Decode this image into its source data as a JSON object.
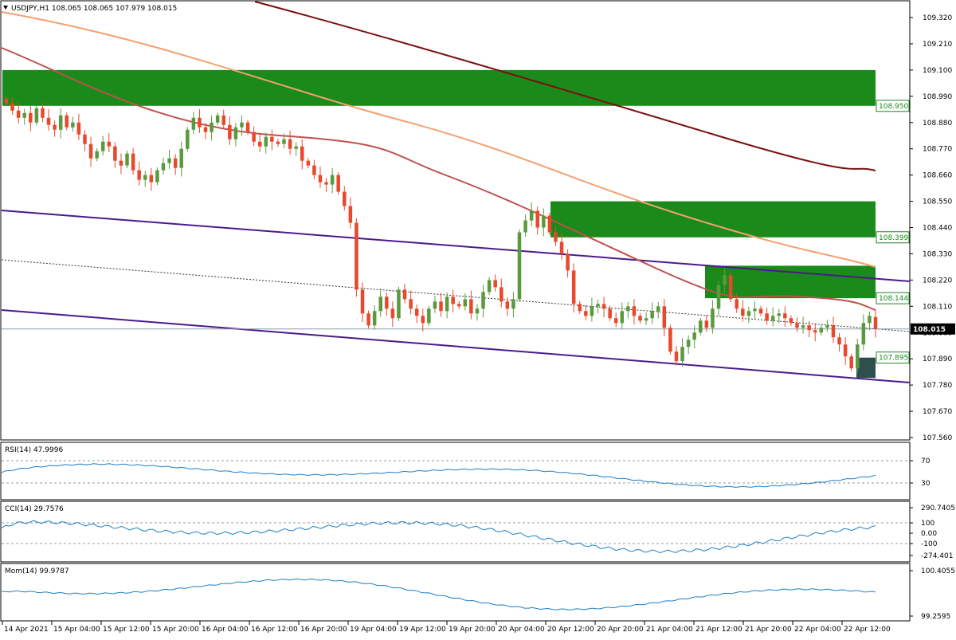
{
  "window": {
    "symbol_header": "USDJPY,H1  108.065 108.065 107.979 108.015",
    "dropdown_icon": "triangle-down-icon"
  },
  "colors": {
    "bull": "#5a9a3e",
    "bear": "#e8492d",
    "zone_green": "#1a8a1a",
    "zone_dark": "#2f4f4f",
    "ma_dark": "#7a1010",
    "ma_light": "#f5a070",
    "ma_mid": "#c0504d",
    "channel": "#4b1a8c",
    "indicator_line": "#1e7fc8",
    "grid": "#c8c8c8"
  },
  "price_axis": {
    "ticks": [
      "109.320",
      "109.210",
      "109.100",
      "108.990",
      "108.880",
      "108.770",
      "108.660",
      "108.550",
      "108.440",
      "108.330",
      "108.220",
      "108.110",
      "108.000",
      "107.890",
      "107.780",
      "107.670",
      "107.560"
    ],
    "current_price": "108.015",
    "levels": [
      {
        "label": "108.950",
        "value": 108.95
      },
      {
        "label": "108.399",
        "value": 108.399
      },
      {
        "label": "108.144",
        "value": 108.144
      },
      {
        "label": "107.895",
        "value": 107.895
      }
    ],
    "ylim": [
      107.54,
      109.41
    ]
  },
  "time_axis": {
    "labels": [
      "14 Apr 2021",
      "15 Apr 04:00",
      "15 Apr 12:00",
      "15 Apr 20:00",
      "16 Apr 04:00",
      "16 Apr 12:00",
      "16 Apr 20:00",
      "19 Apr 04:00",
      "19 Apr 12:00",
      "19 Apr 20:00",
      "20 Apr 04:00",
      "20 Apr 12:00",
      "20 Apr 20:00",
      "21 Apr 04:00",
      "21 Apr 12:00",
      "21 Apr 20:00",
      "22 Apr 04:00",
      "22 Apr 12:00"
    ]
  },
  "rsi": {
    "label": "RSI(14) 47.9996",
    "ticks": [
      "70",
      "30"
    ]
  },
  "cci": {
    "label": "CCI(14) 29.7576",
    "ticks": [
      "290.7405",
      "100",
      "0.00",
      "-100",
      "-274.401"
    ]
  },
  "mom": {
    "label": "Mom(14) 99.9787",
    "ticks": [
      "100.4055",
      "99.2595"
    ]
  },
  "chart_data": {
    "type": "candlestick",
    "symbol": "USDJPY",
    "timeframe": "H1",
    "ohlc_last": {
      "open": 108.065,
      "high": 108.065,
      "low": 107.979,
      "close": 108.015
    },
    "closes": [
      108.96,
      108.93,
      108.9,
      108.92,
      108.88,
      108.94,
      108.9,
      108.87,
      108.85,
      108.91,
      108.86,
      108.88,
      108.83,
      108.79,
      108.73,
      108.76,
      108.8,
      108.78,
      108.72,
      108.7,
      108.75,
      108.68,
      108.64,
      108.66,
      108.63,
      108.68,
      108.71,
      108.73,
      108.69,
      108.77,
      108.85,
      108.9,
      108.86,
      108.84,
      108.88,
      108.91,
      108.87,
      108.81,
      108.86,
      108.88,
      108.84,
      108.8,
      108.78,
      108.82,
      108.8,
      108.79,
      108.81,
      108.77,
      108.78,
      108.72,
      108.7,
      108.66,
      108.63,
      108.62,
      108.66,
      108.59,
      108.53,
      108.46,
      108.18,
      108.08,
      108.03,
      108.09,
      108.15,
      108.1,
      108.06,
      108.18,
      108.14,
      108.1,
      108.07,
      108.04,
      108.1,
      108.13,
      108.09,
      108.15,
      108.12,
      108.11,
      108.14,
      108.08,
      108.1,
      108.17,
      108.22,
      108.19,
      108.13,
      108.1,
      108.14,
      108.42,
      108.47,
      108.51,
      108.44,
      108.49,
      108.42,
      108.38,
      108.33,
      108.26,
      108.12,
      108.09,
      108.07,
      108.11,
      108.12,
      108.1,
      108.06,
      108.04,
      108.09,
      108.11,
      108.07,
      108.05,
      108.06,
      108.09,
      108.11,
      108.02,
      107.92,
      107.88,
      107.94,
      107.97,
      108.0,
      108.05,
      108.02,
      108.1,
      108.2,
      108.24,
      108.14,
      108.1,
      108.07,
      108.09,
      108.1,
      108.08,
      108.05,
      108.07,
      108.08,
      108.06,
      108.04,
      108.02,
      108.03,
      108.01,
      108.0,
      108.02,
      108.03,
      107.98,
      107.95,
      107.9,
      107.85,
      107.95,
      108.04,
      108.07,
      108.015
    ],
    "moving_averages": [
      {
        "value_at_end": 108.68
      },
      {
        "value_at_end": 108.27
      },
      {
        "value_at_end": 108.1
      }
    ],
    "zones": [
      {
        "from": 108.95,
        "to": 109.1
      },
      {
        "from": 108.399,
        "to": 108.55
      },
      {
        "from": 108.144,
        "to": 108.28
      },
      {
        "from": 107.81,
        "to": 107.895
      }
    ],
    "rsi_last": 47.9996,
    "cci_last": 29.7576,
    "mom_last": 99.9787,
    "ylim": [
      107.54,
      109.41
    ]
  }
}
